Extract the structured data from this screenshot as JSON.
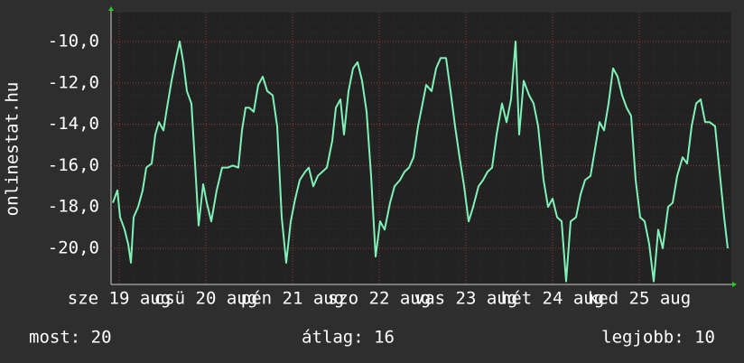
{
  "chart_data": {
    "type": "line",
    "y_label": "onlinestat.hu",
    "color": "#7ff2b8",
    "grid": true,
    "xlim": [
      0,
      171.75
    ],
    "ylim": [
      -21.75,
      -8.56
    ],
    "yticks": [
      {
        "value": -10,
        "label": "-10,0"
      },
      {
        "value": -12,
        "label": "-12,0"
      },
      {
        "value": -14,
        "label": "-14,0"
      },
      {
        "value": -16,
        "label": "-16,0"
      },
      {
        "value": -18,
        "label": "-18,0"
      },
      {
        "value": -20,
        "label": "-20,0"
      }
    ],
    "xticks": [
      {
        "value": 2.25,
        "label": "sze 19 aug"
      },
      {
        "value": 26.25,
        "label": "csü 20 aug"
      },
      {
        "value": 50.25,
        "label": "pén 21 aug"
      },
      {
        "value": 74.25,
        "label": "szo 22 aug"
      },
      {
        "value": 98.25,
        "label": "vas 23 aug"
      },
      {
        "value": 122.25,
        "label": "hét 24 aug"
      },
      {
        "value": 146.25,
        "label": "ked 25 aug"
      }
    ],
    "x": [
      0.5,
      1.75,
      2.5,
      3.75,
      4.75,
      5.5,
      6.25,
      7.5,
      8.75,
      9.75,
      11.25,
      12.25,
      13.25,
      14.5,
      15.5,
      16.75,
      18,
      19,
      20,
      21,
      22.25,
      23.25,
      24.25,
      25.5,
      26.5,
      27.75,
      29.25,
      30.75,
      32.25,
      33.75,
      35.25,
      36.25,
      37.25,
      38.25,
      39.5,
      40.75,
      42,
      43.25,
      44.75,
      46,
      47.25,
      48.5,
      49.75,
      51,
      52.25,
      53.75,
      54.75,
      56,
      57.25,
      58.5,
      59.75,
      61.25,
      62.25,
      63.5,
      64.5,
      65.75,
      67,
      68.25,
      69.5,
      70.75,
      72,
      73.25,
      74.5,
      75.75,
      77.25,
      78.5,
      80,
      81.25,
      82.5,
      83.75,
      85,
      86.25,
      87.25,
      88.75,
      90,
      91.25,
      92.75,
      94,
      95.25,
      96.5,
      97.75,
      99,
      100.25,
      101.75,
      103,
      104.25,
      105.5,
      106.75,
      108.25,
      109.5,
      110.75,
      112,
      113,
      114.25,
      115.75,
      117,
      118.25,
      119.75,
      121,
      122.25,
      123.5,
      124.75,
      126,
      127.25,
      128.75,
      130,
      131.25,
      132.75,
      134,
      135.25,
      136.5,
      137.75,
      139,
      140.25,
      141.5,
      142.75,
      144,
      145.25,
      146.5,
      147.75,
      149,
      150.25,
      151.5,
      152.75,
      154.25,
      155.5,
      156.75,
      158.25,
      159.5,
      160.75,
      162,
      163.25,
      164.5,
      165.75,
      167.25,
      168.5,
      169.75,
      170.75
    ],
    "values": [
      -17.8,
      -17.2,
      -18.5,
      -19.1,
      -19.8,
      -20.7,
      -18.5,
      -18.0,
      -17.2,
      -16.1,
      -15.9,
      -14.5,
      -13.9,
      -14.3,
      -13.2,
      -11.9,
      -10.8,
      -10.0,
      -11.0,
      -12.4,
      -13.0,
      -15.9,
      -18.9,
      -16.9,
      -17.8,
      -18.7,
      -17.2,
      -16.1,
      -16.1,
      -16.0,
      -16.1,
      -14.3,
      -13.2,
      -13.2,
      -13.4,
      -12.1,
      -11.7,
      -12.4,
      -12.6,
      -14.1,
      -18.5,
      -20.7,
      -18.7,
      -17.6,
      -16.7,
      -16.3,
      -16.1,
      -17.0,
      -16.5,
      -16.3,
      -16.1,
      -14.8,
      -13.2,
      -12.8,
      -14.5,
      -12.4,
      -11.3,
      -11.0,
      -11.9,
      -13.4,
      -16.5,
      -20.4,
      -18.7,
      -19.1,
      -17.8,
      -17.0,
      -16.7,
      -16.3,
      -16.1,
      -15.6,
      -14.1,
      -13.0,
      -12.1,
      -12.4,
      -11.3,
      -10.8,
      -10.8,
      -12.4,
      -14.1,
      -15.6,
      -17.0,
      -18.7,
      -18.0,
      -17.0,
      -16.7,
      -16.3,
      -16.1,
      -14.5,
      -13.0,
      -13.9,
      -12.8,
      -10.0,
      -14.5,
      -11.9,
      -12.6,
      -13.0,
      -14.1,
      -16.7,
      -18.0,
      -17.6,
      -18.5,
      -18.7,
      -21.6,
      -18.7,
      -18.5,
      -17.4,
      -16.7,
      -16.5,
      -15.2,
      -13.9,
      -14.3,
      -13.0,
      -11.3,
      -11.7,
      -12.6,
      -13.2,
      -13.6,
      -16.7,
      -18.5,
      -18.7,
      -19.8,
      -21.6,
      -19.1,
      -20.0,
      -18.0,
      -17.8,
      -16.5,
      -15.6,
      -15.9,
      -14.1,
      -13.0,
      -12.8,
      -13.9,
      -13.9,
      -14.1,
      -16.3,
      -18.5,
      -20.0
    ]
  },
  "footer": {
    "current": "most: 20",
    "average": "átlag: 16",
    "best": "legjobb: 10"
  }
}
